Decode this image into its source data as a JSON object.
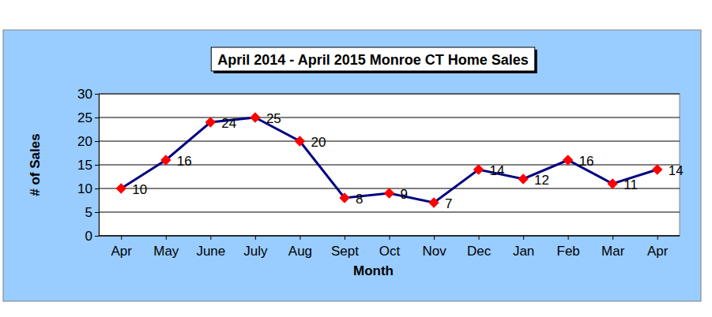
{
  "chart_data": {
    "type": "line",
    "title": "April 2014 - April 2015 Monroe CT Home Sales",
    "x_label": "Month",
    "y_label": "# of Sales",
    "categories": [
      "Apr",
      "May",
      "June",
      "July",
      "Aug",
      "Sept",
      "Oct",
      "Nov",
      "Dec",
      "Jan",
      "Feb",
      "Mar",
      "Apr"
    ],
    "values": [
      10,
      16,
      24,
      25,
      20,
      8,
      9,
      7,
      14,
      12,
      16,
      11,
      14
    ],
    "color": "#000080",
    "marker": "diamond",
    "data_labels": true,
    "ylim": [
      0,
      30
    ],
    "yticks": [
      0,
      5,
      10,
      15,
      20,
      25,
      30
    ],
    "grid": true
  }
}
